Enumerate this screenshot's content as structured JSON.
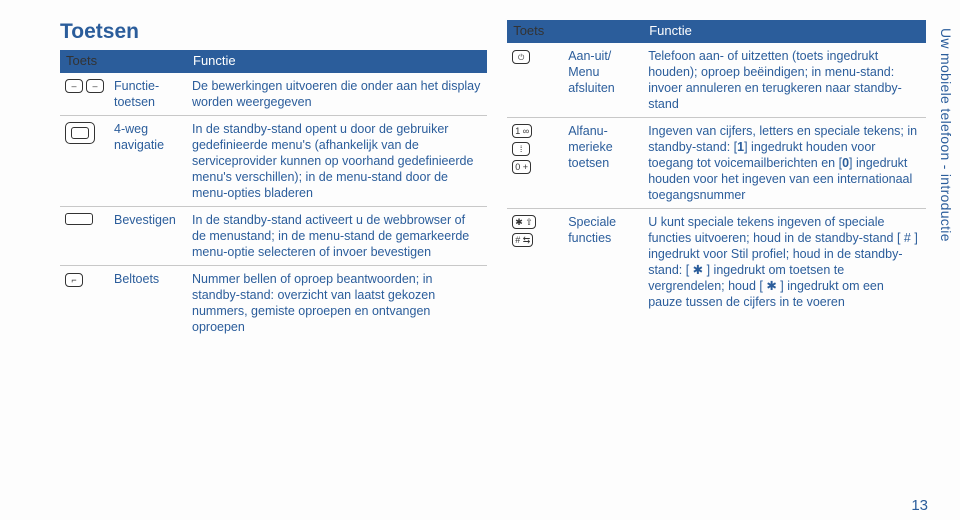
{
  "title": "Toetsen",
  "sidebar": "Uw mobiele telefoon - introductie",
  "pagenum": "13",
  "header_key": "Toets",
  "header_func": "Functie",
  "left": [
    {
      "icons": "pair-minus",
      "label": "Functie-\ntoetsen",
      "desc": "De bewerkingen uitvoeren die onder aan het display worden weergegeven"
    },
    {
      "icons": "nav",
      "label": "4-weg navigatie",
      "desc": "In de standby-stand opent u door de gebruiker gedefinieerde menu's (afhankelijk van de serviceprovider kunnen op voorhand gedefinieerde menu's verschillen); in de menu-stand door de menu-opties bladeren"
    },
    {
      "icons": "rect",
      "label": "Bevestigen",
      "desc": "In de standby-stand activeert u de webbrowser of de menustand; in de menu-stand de gemarkeerde menu-optie selecteren of invoer bevestigen"
    },
    {
      "icons": "call",
      "label": "Beltoets",
      "desc": "Nummer bellen of oproep beantwoorden; in standby-stand: overzicht van laatst gekozen nummers, gemiste oproepen en ontvangen oproepen"
    }
  ],
  "right": [
    {
      "icons": "pwr",
      "label": "Aan-uit/\nMenu afsluiten",
      "desc": "Telefoon aan- of uitzetten (toets ingedrukt houden); oproep beëindigen; in menu-stand: invoer annuleren en terugkeren naar standby-stand"
    },
    {
      "icons": "nums",
      "label": "Alfanu-\nmerieke toetsen",
      "desc_html": "Ingeven van cijfers, letters en speciale tekens; in standby-stand: [<b>1</b>] ingedrukt houden voor toegang tot voicemailberichten en [<b>0</b>] ingedrukt houden voor het ingeven van een internationaal toegangsnummer"
    },
    {
      "icons": "spec",
      "label": "Speciale functies",
      "desc_html": "U kunt speciale tekens ingeven of speciale functies uitvoeren; houd in de standby-stand [&nbsp;#&nbsp;] ingedrukt voor Stil profiel; houd in de standby-stand: [&nbsp;✱&nbsp;] ingedrukt om toetsen te vergrendelen; houd [&nbsp;✱&nbsp;] ingedrukt om een pauze tussen de cijfers in te voeren"
    }
  ]
}
